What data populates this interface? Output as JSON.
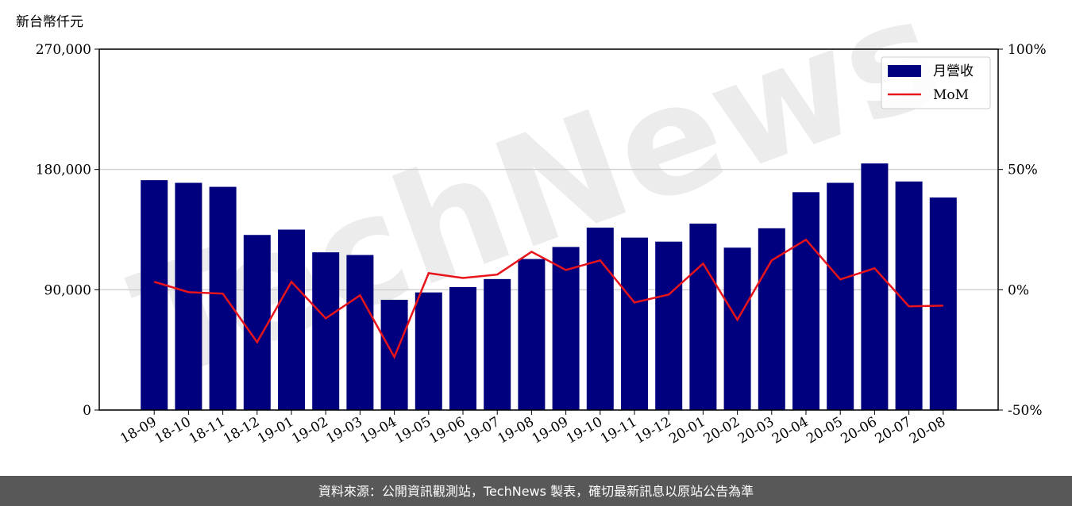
{
  "chart_data": {
    "type": "bar",
    "y_label": "新台幣仟元",
    "categories": [
      "18-09",
      "18-10",
      "18-11",
      "18-12",
      "19-01",
      "19-02",
      "19-03",
      "19-04",
      "19-05",
      "19-06",
      "19-07",
      "19-08",
      "19-09",
      "19-10",
      "19-11",
      "19-12",
      "20-01",
      "20-02",
      "20-03",
      "20-04",
      "20-05",
      "20-06",
      "20-07",
      "20-08"
    ],
    "series": [
      {
        "name": "月營收",
        "color": "#00007f",
        "type": "bar",
        "values": [
          172000,
          170000,
          167000,
          131000,
          135000,
          118000,
          116000,
          82500,
          88000,
          92000,
          98000,
          113000,
          122000,
          136500,
          129000,
          126000,
          139500,
          121500,
          136000,
          163000,
          170000,
          184500,
          171000,
          159000
        ]
      },
      {
        "name": "MoM",
        "color": "#e8141a",
        "type": "line",
        "axis": "y2",
        "values": [
          3.3,
          -1,
          -1.6,
          -21.8,
          3.3,
          -11.9,
          -2.3,
          -28,
          6.9,
          4.9,
          6.3,
          15.8,
          8.2,
          12.2,
          -5.3,
          -2,
          10.9,
          -12.5,
          12.2,
          20.8,
          4.3,
          8.9,
          -6.9,
          -6.6
        ]
      }
    ],
    "ylim": [
      0,
      270000
    ],
    "yticks": [
      0,
      {
        "value": 90000,
        "label": "90,000"
      },
      {
        "value": 180000,
        "label": "180,000"
      },
      {
        "value": 270000,
        "label": "270,000"
      }
    ],
    "y2lim": [
      -50,
      100
    ],
    "y2ticks": [
      {
        "value": -50,
        "label": "-50%"
      },
      {
        "value": 0,
        "label": "0%"
      },
      {
        "value": 50,
        "label": "50%"
      },
      {
        "value": 100,
        "label": "100%"
      }
    ],
    "grid": true,
    "legend": "upper right",
    "watermark": "TechNews",
    "footer": "資料來源：公開資訊觀測站，TechNews 製表，確切最新訊息以原站公告為準"
  }
}
